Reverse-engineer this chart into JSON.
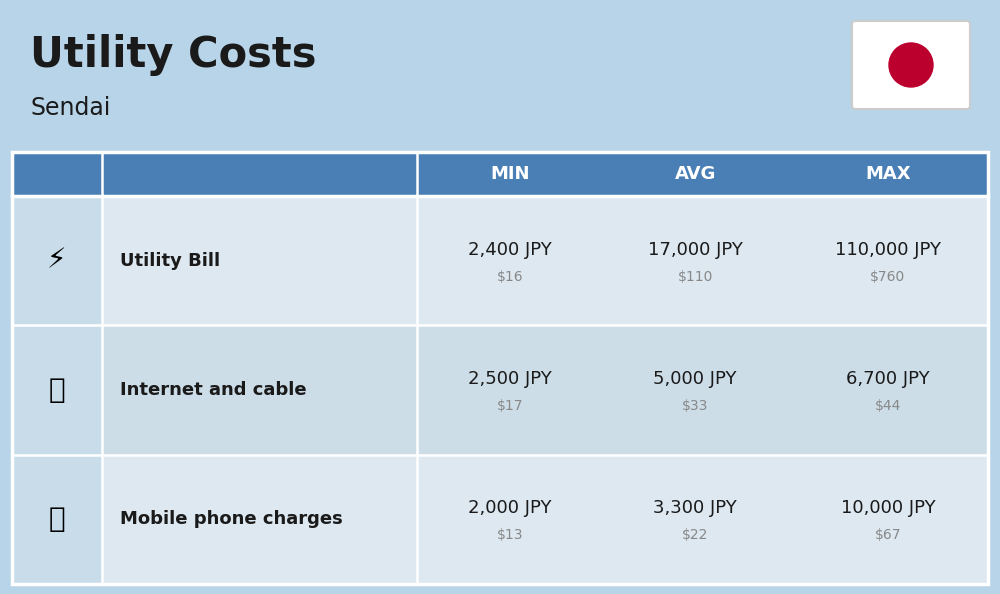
{
  "title": "Utility Costs",
  "subtitle": "Sendai",
  "bg_color": "#b8d4e8",
  "header_color": "#4a7fb5",
  "header_text_color": "#ffffff",
  "row_colors": [
    "#dde8f0",
    "#ccdde8"
  ],
  "icon_col_color": "#c8dcea",
  "text_color": "#1a1a1a",
  "usd_color": "#888888",
  "col_headers": [
    "MIN",
    "AVG",
    "MAX"
  ],
  "rows": [
    {
      "label": "Utility Bill",
      "min_jpy": "2,400 JPY",
      "min_usd": "$16",
      "avg_jpy": "17,000 JPY",
      "avg_usd": "$110",
      "max_jpy": "110,000 JPY",
      "max_usd": "$760"
    },
    {
      "label": "Internet and cable",
      "min_jpy": "2,500 JPY",
      "min_usd": "$17",
      "avg_jpy": "5,000 JPY",
      "avg_usd": "$33",
      "max_jpy": "6,700 JPY",
      "max_usd": "$44"
    },
    {
      "label": "Mobile phone charges",
      "min_jpy": "2,000 JPY",
      "min_usd": "$13",
      "avg_jpy": "3,300 JPY",
      "avg_usd": "$22",
      "max_jpy": "10,000 JPY",
      "max_usd": "$67"
    }
  ],
  "flag_white": "#ffffff",
  "flag_red": "#bc002d"
}
